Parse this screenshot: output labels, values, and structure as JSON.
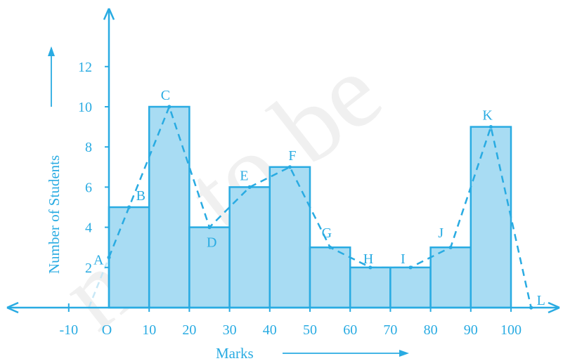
{
  "chart_data": {
    "type": "bar",
    "subtype": "histogram-with-frequency-polygon",
    "xlabel": "Marks",
    "ylabel": "Number of Students",
    "xlim": [
      -20,
      110
    ],
    "ylim": [
      0,
      14
    ],
    "x_ticks": [
      {
        "value": -10,
        "label": "-10"
      },
      {
        "value": 0,
        "label": "O"
      },
      {
        "value": 10,
        "label": "10"
      },
      {
        "value": 20,
        "label": "20"
      },
      {
        "value": 30,
        "label": "30"
      },
      {
        "value": 40,
        "label": "40"
      },
      {
        "value": 50,
        "label": "50"
      },
      {
        "value": 60,
        "label": "60"
      },
      {
        "value": 70,
        "label": "70"
      },
      {
        "value": 80,
        "label": "80"
      },
      {
        "value": 90,
        "label": "90"
      },
      {
        "value": 100,
        "label": "100"
      }
    ],
    "y_ticks": [
      {
        "value": 2,
        "label": "2"
      },
      {
        "value": 4,
        "label": "4"
      },
      {
        "value": 6,
        "label": "6"
      },
      {
        "value": 8,
        "label": "8"
      },
      {
        "value": 10,
        "label": "10"
      },
      {
        "value": 12,
        "label": "12"
      }
    ],
    "bins": [
      {
        "from": 0,
        "to": 10,
        "value": 5
      },
      {
        "from": 10,
        "to": 20,
        "value": 10
      },
      {
        "from": 20,
        "to": 30,
        "value": 4
      },
      {
        "from": 30,
        "to": 40,
        "value": 6
      },
      {
        "from": 40,
        "to": 50,
        "value": 7
      },
      {
        "from": 50,
        "to": 60,
        "value": 3
      },
      {
        "from": 60,
        "to": 70,
        "value": 2
      },
      {
        "from": 70,
        "to": 80,
        "value": 2
      },
      {
        "from": 80,
        "to": 90,
        "value": 3
      },
      {
        "from": 90,
        "to": 100,
        "value": 9
      }
    ],
    "polygon_points": [
      {
        "label": "",
        "x": -5,
        "y": 0
      },
      {
        "label": "A",
        "x": 0,
        "y": 2.5
      },
      {
        "label": "B",
        "x": 5,
        "y": 5
      },
      {
        "label": "C",
        "x": 15,
        "y": 10
      },
      {
        "label": "D",
        "x": 25,
        "y": 4
      },
      {
        "label": "E",
        "x": 35,
        "y": 6
      },
      {
        "label": "F",
        "x": 45,
        "y": 7
      },
      {
        "label": "G",
        "x": 55,
        "y": 3
      },
      {
        "label": "H",
        "x": 65,
        "y": 2
      },
      {
        "label": "I",
        "x": 75,
        "y": 2
      },
      {
        "label": "J",
        "x": 85,
        "y": 3
      },
      {
        "label": "K",
        "x": 95,
        "y": 9
      },
      {
        "label": "L",
        "x": 105,
        "y": 0
      }
    ],
    "colors": {
      "axis": "#29abe2",
      "bar_fill": "#a8dcf3",
      "bar_stroke": "#29abe2",
      "polygon": "#29abe2"
    }
  },
  "watermark": "not to be"
}
